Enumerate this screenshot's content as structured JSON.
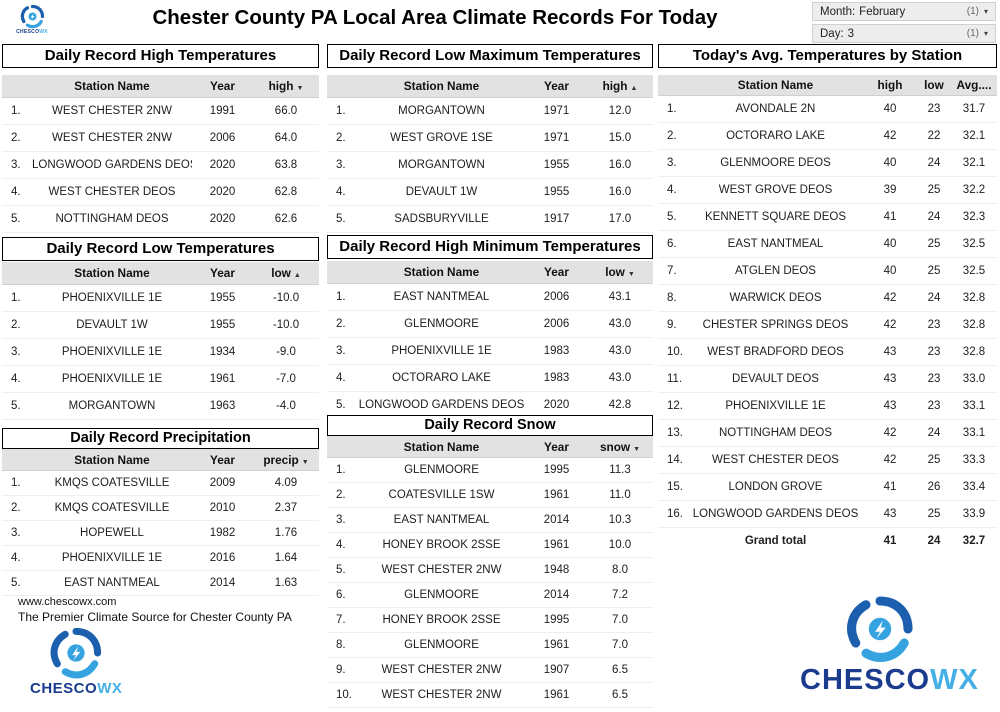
{
  "header": {
    "title": "Chester County PA Local Area Climate Records For Today"
  },
  "filters": {
    "month": {
      "label": "Month:",
      "value": "February",
      "count": "(1)"
    },
    "day": {
      "label": "Day:",
      "value": "3",
      "count": "(1)"
    }
  },
  "tables": {
    "record_high": {
      "title": "Daily Record High Temperatures",
      "columns": {
        "station": "Station Name",
        "year": "Year",
        "value": "high"
      },
      "sort_icon": "▼",
      "rows": [
        {
          "rank": "1.",
          "station": "WEST CHESTER 2NW",
          "year": "1991",
          "value": "66.0"
        },
        {
          "rank": "2.",
          "station": "WEST CHESTER 2NW",
          "year": "2006",
          "value": "64.0"
        },
        {
          "rank": "3.",
          "station": "LONGWOOD GARDENS DEOS",
          "year": "2020",
          "value": "63.8"
        },
        {
          "rank": "4.",
          "station": "WEST CHESTER DEOS",
          "year": "2020",
          "value": "62.8"
        },
        {
          "rank": "5.",
          "station": "NOTTINGHAM DEOS",
          "year": "2020",
          "value": "62.6"
        }
      ]
    },
    "record_low_max": {
      "title": "Daily Record Low Maximum Temperatures",
      "columns": {
        "station": "Station Name",
        "year": "Year",
        "value": "high"
      },
      "sort_icon": "▲",
      "rows": [
        {
          "rank": "1.",
          "station": "MORGANTOWN",
          "year": "1971",
          "value": "12.0"
        },
        {
          "rank": "2.",
          "station": "WEST GROVE 1SE",
          "year": "1971",
          "value": "15.0"
        },
        {
          "rank": "3.",
          "station": "MORGANTOWN",
          "year": "1955",
          "value": "16.0"
        },
        {
          "rank": "4.",
          "station": "DEVAULT 1W",
          "year": "1955",
          "value": "16.0"
        },
        {
          "rank": "5.",
          "station": "SADSBURYVILLE",
          "year": "1917",
          "value": "17.0"
        }
      ]
    },
    "record_low": {
      "title": "Daily Record Low Temperatures",
      "columns": {
        "station": "Station Name",
        "year": "Year",
        "value": "low"
      },
      "sort_icon": "▲",
      "rows": [
        {
          "rank": "1.",
          "station": "PHOENIXVILLE 1E",
          "year": "1955",
          "value": "-10.0"
        },
        {
          "rank": "2.",
          "station": "DEVAULT 1W",
          "year": "1955",
          "value": "-10.0"
        },
        {
          "rank": "3.",
          "station": "PHOENIXVILLE 1E",
          "year": "1934",
          "value": "-9.0"
        },
        {
          "rank": "4.",
          "station": "PHOENIXVILLE 1E",
          "year": "1961",
          "value": "-7.0"
        },
        {
          "rank": "5.",
          "station": "MORGANTOWN",
          "year": "1963",
          "value": "-4.0"
        }
      ]
    },
    "record_high_min": {
      "title": "Daily Record High Minimum Temperatures",
      "columns": {
        "station": "Station Name",
        "year": "Year",
        "value": "low"
      },
      "sort_icon": "▼",
      "rows": [
        {
          "rank": "1.",
          "station": "EAST NANTMEAL",
          "year": "2006",
          "value": "43.1"
        },
        {
          "rank": "2.",
          "station": "GLENMOORE",
          "year": "2006",
          "value": "43.0"
        },
        {
          "rank": "3.",
          "station": "PHOENIXVILLE 1E",
          "year": "1983",
          "value": "43.0"
        },
        {
          "rank": "4.",
          "station": "OCTORARO LAKE",
          "year": "1983",
          "value": "43.0"
        },
        {
          "rank": "5.",
          "station": "LONGWOOD GARDENS DEOS",
          "year": "2020",
          "value": "42.8"
        }
      ]
    },
    "record_precip": {
      "title": "Daily Record Precipitation",
      "columns": {
        "station": "Station Name",
        "year": "Year",
        "value": "precip"
      },
      "sort_icon": "▼",
      "rows": [
        {
          "rank": "1.",
          "station": "KMQS COATESVILLE",
          "year": "2009",
          "value": "4.09"
        },
        {
          "rank": "2.",
          "station": "KMQS COATESVILLE",
          "year": "2010",
          "value": "2.37"
        },
        {
          "rank": "3.",
          "station": "HOPEWELL",
          "year": "1982",
          "value": "1.76"
        },
        {
          "rank": "4.",
          "station": "PHOENIXVILLE 1E",
          "year": "2016",
          "value": "1.64"
        },
        {
          "rank": "5.",
          "station": "EAST NANTMEAL",
          "year": "2014",
          "value": "1.63"
        }
      ]
    },
    "record_snow": {
      "title": "Daily Record Snow",
      "columns": {
        "station": "Station Name",
        "year": "Year",
        "value": "snow"
      },
      "sort_icon": "▼",
      "rows": [
        {
          "rank": "1.",
          "station": "GLENMOORE",
          "year": "1995",
          "value": "11.3"
        },
        {
          "rank": "2.",
          "station": "COATESVILLE 1SW",
          "year": "1961",
          "value": "11.0"
        },
        {
          "rank": "3.",
          "station": "EAST NANTMEAL",
          "year": "2014",
          "value": "10.3"
        },
        {
          "rank": "4.",
          "station": "HONEY BROOK 2SSE",
          "year": "1961",
          "value": "10.0"
        },
        {
          "rank": "5.",
          "station": "WEST CHESTER 2NW",
          "year": "1948",
          "value": "8.0"
        },
        {
          "rank": "6.",
          "station": "GLENMOORE",
          "year": "2014",
          "value": "7.2"
        },
        {
          "rank": "7.",
          "station": "HONEY BROOK 2SSE",
          "year": "1995",
          "value": "7.0"
        },
        {
          "rank": "8.",
          "station": "GLENMOORE",
          "year": "1961",
          "value": "7.0"
        },
        {
          "rank": "9.",
          "station": "WEST CHESTER 2NW",
          "year": "1907",
          "value": "6.5"
        },
        {
          "rank": "10.",
          "station": "WEST CHESTER 2NW",
          "year": "1961",
          "value": "6.5"
        }
      ]
    },
    "avg_today": {
      "title": "Today's Avg. Temperatures by Station",
      "columns": {
        "station": "Station Name",
        "high": "high",
        "low": "low",
        "avg": "Avg...."
      },
      "rows": [
        {
          "rank": "1.",
          "station": "AVONDALE 2N",
          "high": "40",
          "low": "23",
          "avg": "31.7"
        },
        {
          "rank": "2.",
          "station": "OCTORARO LAKE",
          "high": "42",
          "low": "22",
          "avg": "32.1"
        },
        {
          "rank": "3.",
          "station": "GLENMOORE DEOS",
          "high": "40",
          "low": "24",
          "avg": "32.1"
        },
        {
          "rank": "4.",
          "station": "WEST GROVE DEOS",
          "high": "39",
          "low": "25",
          "avg": "32.2"
        },
        {
          "rank": "5.",
          "station": "KENNETT SQUARE DEOS",
          "high": "41",
          "low": "24",
          "avg": "32.3"
        },
        {
          "rank": "6.",
          "station": "EAST NANTMEAL",
          "high": "40",
          "low": "25",
          "avg": "32.5"
        },
        {
          "rank": "7.",
          "station": "ATGLEN DEOS",
          "high": "40",
          "low": "25",
          "avg": "32.5"
        },
        {
          "rank": "8.",
          "station": "WARWICK DEOS",
          "high": "42",
          "low": "24",
          "avg": "32.8"
        },
        {
          "rank": "9.",
          "station": "CHESTER SPRINGS DEOS",
          "high": "42",
          "low": "23",
          "avg": "32.8"
        },
        {
          "rank": "10.",
          "station": "WEST BRADFORD DEOS",
          "high": "43",
          "low": "23",
          "avg": "32.8"
        },
        {
          "rank": "11.",
          "station": "DEVAULT DEOS",
          "high": "43",
          "low": "23",
          "avg": "33.0"
        },
        {
          "rank": "12.",
          "station": "PHOENIXVILLE 1E",
          "high": "43",
          "low": "23",
          "avg": "33.1"
        },
        {
          "rank": "13.",
          "station": "NOTTINGHAM DEOS",
          "high": "42",
          "low": "24",
          "avg": "33.1"
        },
        {
          "rank": "14.",
          "station": "WEST CHESTER DEOS",
          "high": "42",
          "low": "25",
          "avg": "33.3"
        },
        {
          "rank": "15.",
          "station": "LONDON GROVE",
          "high": "41",
          "low": "26",
          "avg": "33.4"
        },
        {
          "rank": "16.",
          "station": "LONGWOOD GARDENS DEOS",
          "high": "43",
          "low": "25",
          "avg": "33.9"
        }
      ],
      "total": {
        "label": "Grand total",
        "high": "41",
        "low": "24",
        "avg": "32.7"
      }
    }
  },
  "footer": {
    "url": "www.chescowx.com",
    "tagline": "The Premier Climate Source for Chester County PA"
  },
  "logo": {
    "part1": "CHESCO",
    "part2": "WX"
  },
  "colors": {
    "brand_dark": "#1b3b8e",
    "brand_light": "#45b0e6",
    "header_bg": "#e2e2e2"
  }
}
